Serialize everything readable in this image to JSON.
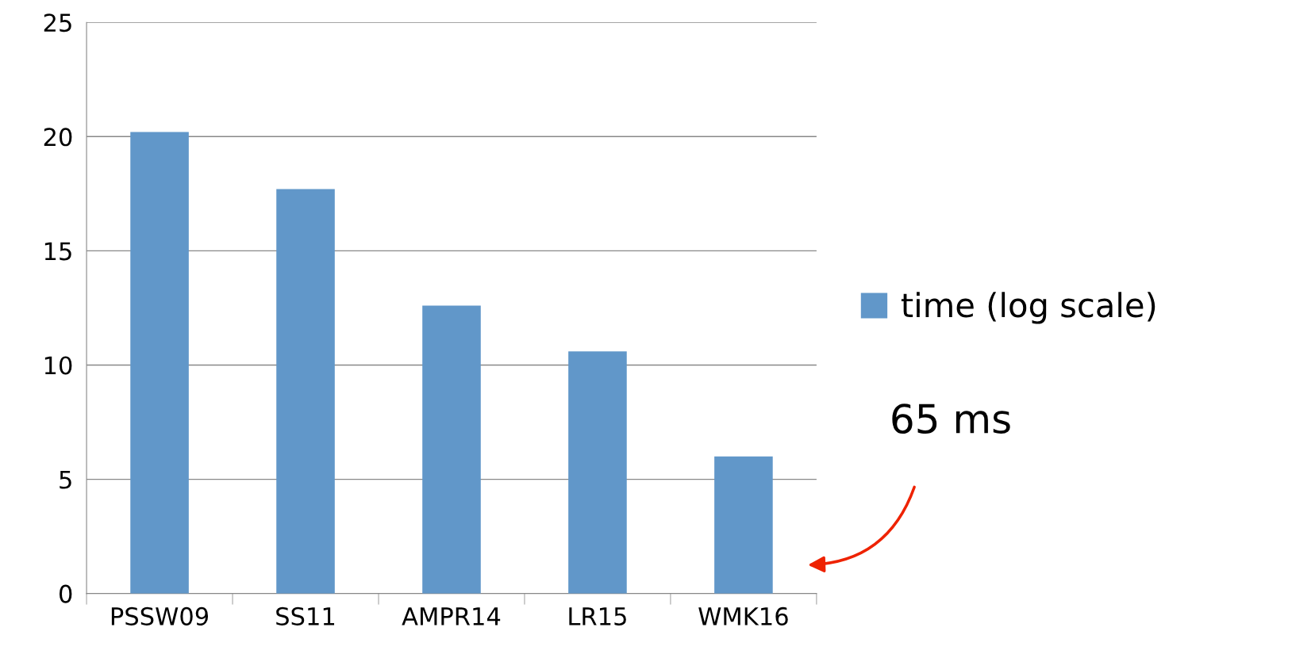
{
  "chart_data": {
    "type": "bar",
    "categories": [
      "PSSW09",
      "SS11",
      "AMPR14",
      "LR15",
      "WMK16"
    ],
    "series": [
      {
        "name": "time (log scale)",
        "color": "#6197c9",
        "values": [
          20.2,
          17.7,
          12.6,
          10.6,
          6.0
        ]
      }
    ],
    "ylim": [
      0,
      25
    ],
    "yticks": [
      0,
      5,
      10,
      15,
      20,
      25
    ],
    "grid": "y",
    "legend": "right",
    "annotations": [
      "65 ms"
    ]
  }
}
